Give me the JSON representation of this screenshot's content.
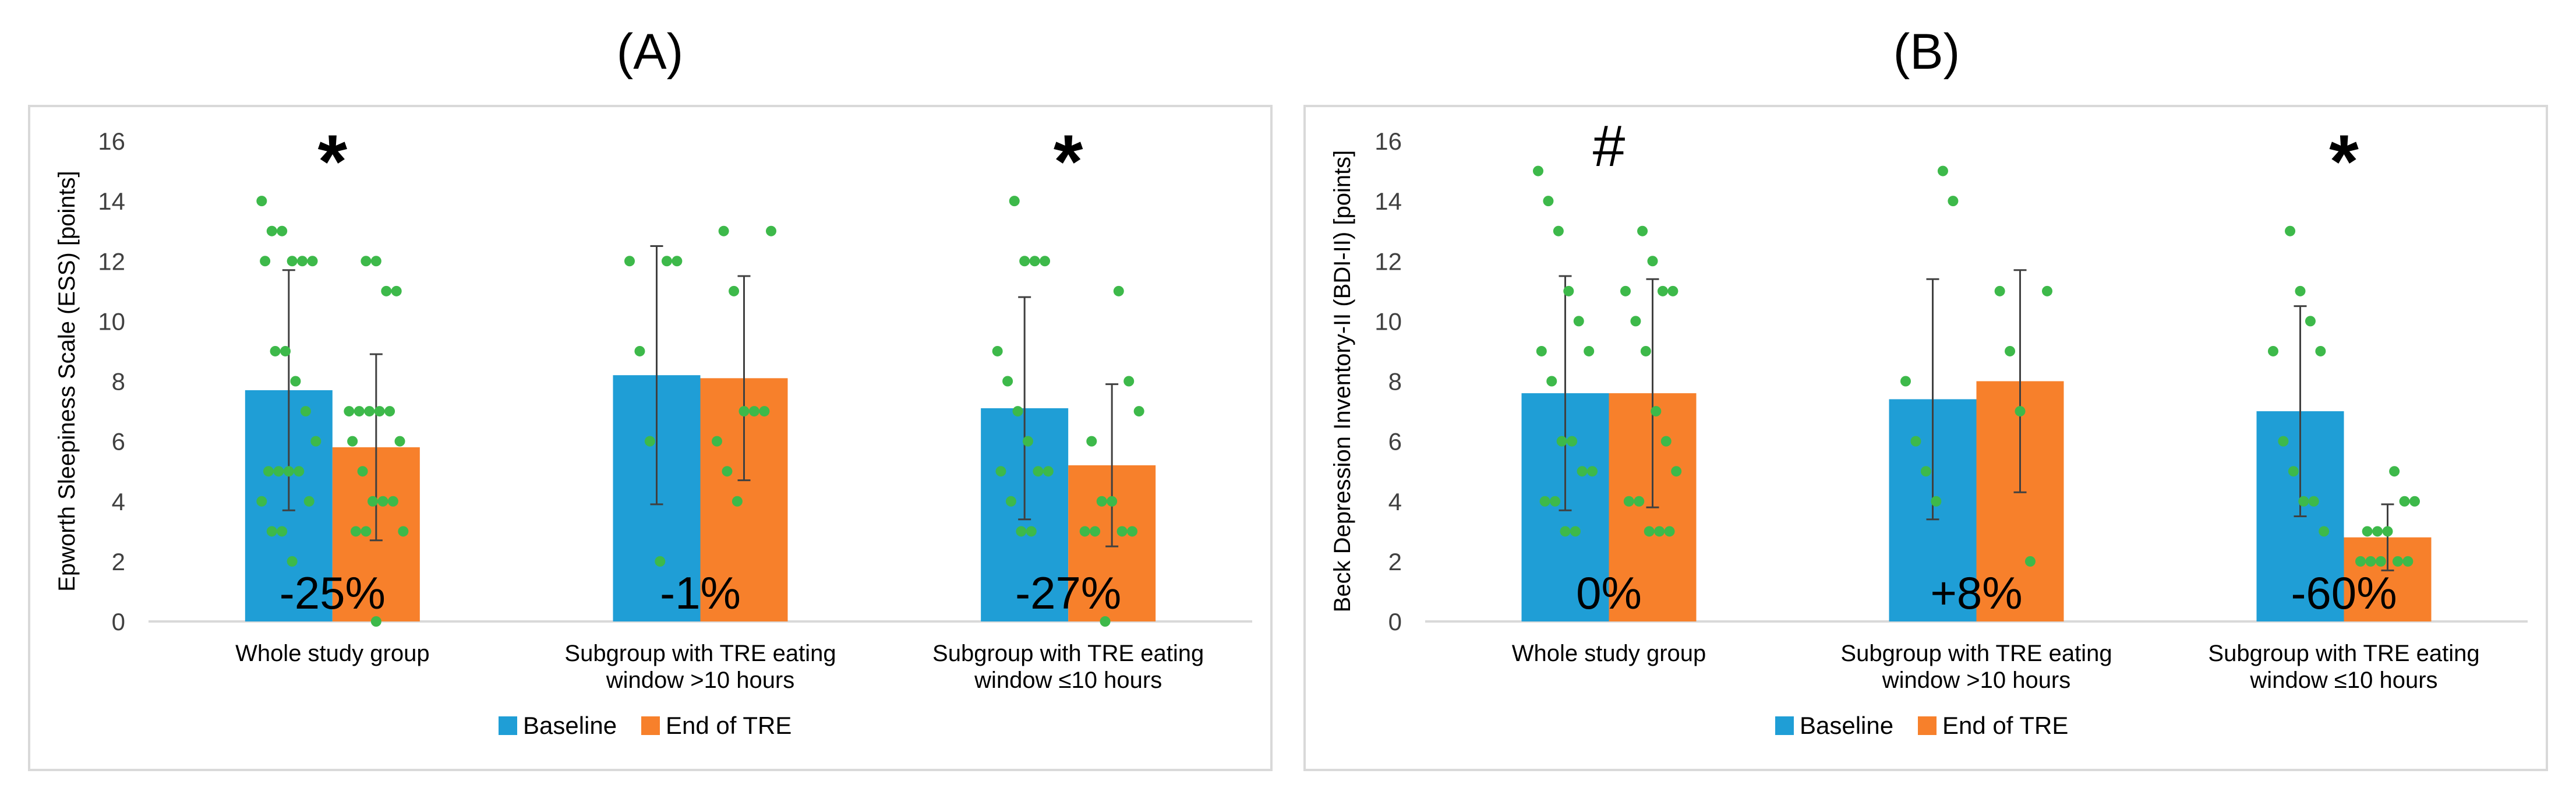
{
  "colors": {
    "baseline": "#1f9ed6",
    "end": "#f7802b",
    "points": "#3db94a",
    "error_bar": "#404040",
    "frame": "#d9d9d9",
    "grid": "#d9d9d9",
    "text": "#404040"
  },
  "legend": {
    "baseline": "Baseline",
    "end": "End of TRE"
  },
  "chart_data": [
    {
      "type": "bar",
      "panel_label": "(A)",
      "ylabel": "Epworth Sleepiness Scale (ESS) [points]",
      "ylim": [
        0,
        16
      ],
      "yticks": [
        "0",
        "2",
        "4",
        "6",
        "8",
        "10",
        "12",
        "14",
        "16"
      ],
      "grid": false,
      "legend_position": "bottom",
      "categories": [
        [
          "Whole study group"
        ],
        [
          "Subgroup with TRE eating",
          "window >10 hours"
        ],
        [
          "Subgroup with TRE eating",
          "window ≤10 hours"
        ]
      ],
      "series": [
        {
          "name": "Baseline",
          "values": [
            7.7,
            8.2,
            7.1
          ],
          "errors": [
            4.0,
            4.3,
            3.7
          ]
        },
        {
          "name": "End of TRE",
          "values": [
            5.8,
            8.1,
            5.2
          ],
          "errors": [
            3.1,
            3.4,
            2.7
          ]
        }
      ],
      "percent_changes": [
        "-25%",
        "-1%",
        "-27%"
      ],
      "significance": [
        "*",
        "",
        "*"
      ],
      "points": [
        [
          [
            14,
            13,
            13,
            12,
            12,
            12,
            12,
            9,
            9,
            8,
            7,
            6,
            5,
            5,
            5,
            5,
            4,
            4,
            3,
            3,
            2
          ],
          [
            12,
            12,
            11,
            11,
            7,
            7,
            7,
            7,
            7,
            6,
            6,
            5,
            4,
            4,
            4,
            3,
            3,
            3,
            0
          ]
        ],
        [
          [
            12,
            12,
            12,
            9,
            6,
            2
          ],
          [
            13,
            13,
            11,
            7,
            7,
            7,
            6,
            5,
            4
          ]
        ],
        [
          [
            14,
            12,
            12,
            12,
            9,
            8,
            7,
            6,
            5,
            5,
            5,
            4,
            3,
            3
          ],
          [
            11,
            8,
            7,
            6,
            4,
            4,
            3,
            3,
            3,
            3,
            0
          ]
        ]
      ]
    },
    {
      "type": "bar",
      "panel_label": "(B)",
      "ylabel": "Beck Depression Inventory-II (BDI-II) [points]",
      "ylim": [
        0,
        16
      ],
      "yticks": [
        "0",
        "2",
        "4",
        "6",
        "8",
        "10",
        "12",
        "14",
        "16"
      ],
      "grid": false,
      "legend_position": "bottom",
      "categories": [
        [
          "Whole study group"
        ],
        [
          "Subgroup with TRE eating",
          "window >10 hours"
        ],
        [
          "Subgroup with TRE eating",
          "window ≤10 hours"
        ]
      ],
      "series": [
        {
          "name": "Baseline",
          "values": [
            7.6,
            7.4,
            7.0
          ],
          "errors": [
            3.9,
            4.0,
            3.5
          ]
        },
        {
          "name": "End of TRE",
          "values": [
            7.6,
            8.0,
            2.8
          ],
          "errors": [
            3.8,
            3.7,
            1.1
          ]
        }
      ],
      "percent_changes": [
        "0%",
        "+8%",
        "-60%"
      ],
      "significance": [
        "#",
        "",
        "*"
      ],
      "points": [
        [
          [
            15,
            14,
            13,
            11,
            10,
            9,
            9,
            8,
            6,
            6,
            5,
            5,
            4,
            4,
            3,
            3
          ],
          [
            13,
            12,
            11,
            11,
            11,
            10,
            9,
            7,
            6,
            5,
            4,
            4,
            3,
            3,
            3
          ]
        ],
        [
          [
            15,
            14,
            8,
            6,
            5,
            4
          ],
          [
            11,
            11,
            9,
            7,
            2
          ]
        ],
        [
          [
            13,
            11,
            10,
            9,
            9,
            6,
            5,
            4,
            4,
            3
          ],
          [
            5,
            4,
            4,
            3,
            3,
            3,
            2,
            2,
            2,
            2,
            2
          ]
        ]
      ]
    }
  ]
}
